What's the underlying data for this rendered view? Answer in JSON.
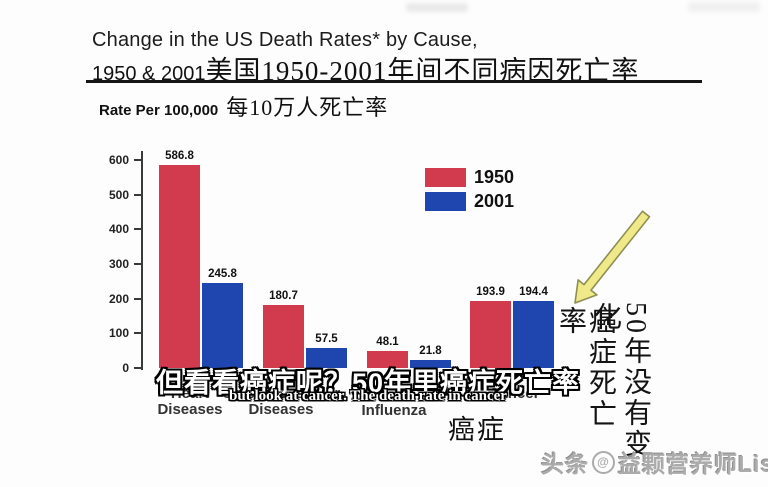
{
  "title": {
    "line1": "Change in the US Death Rates* by Cause,",
    "line2_en": "1950 & 2001",
    "line2_cn": "美国1950-2001年间不同病因死亡率"
  },
  "rate_note": {
    "en": "Rate Per 100,000",
    "cn": "每10万人死亡率"
  },
  "chart_data": {
    "type": "bar",
    "title": "Change in the US Death Rates* by Cause, 1950 & 2001",
    "categories": [
      {
        "lines": [
          "Heart",
          "Diseases"
        ],
        "cn": ""
      },
      {
        "lines": [
          "Cerebrovascular",
          "Diseases"
        ],
        "cn": ""
      },
      {
        "lines": [
          "Influenza"
        ],
        "cn": ""
      },
      {
        "lines": [
          "Cancer"
        ],
        "cn": "癌症"
      }
    ],
    "series": [
      {
        "name": "1950",
        "color": "#d23b4e",
        "values": [
          586.8,
          180.7,
          48.1,
          193.9
        ]
      },
      {
        "name": "2001",
        "color": "#1f45ae",
        "values": [
          245.8,
          57.5,
          21.8,
          194.4
        ]
      }
    ],
    "ylabel_en": "Rate Per 100,000",
    "ylabel_cn": "每10万人死亡率",
    "ylim": [
      0,
      600
    ],
    "yticks": [
      0,
      100,
      200,
      300,
      400,
      500,
      600
    ],
    "grid": false,
    "legend_position": "upper right"
  },
  "caption": {
    "cn": "但看看癌症呢？50年里癌症死亡率",
    "en": "but look at cancer. The death rate in cancer"
  },
  "side_text": {
    "col_left": "癌症死亡率",
    "col_right": "50年没有变化"
  },
  "arrow": {
    "color_fill": "#efe98a",
    "color_edge": "#8f8f52"
  },
  "watermark": {
    "prefix": "头条",
    "icon": "at-circle-icon",
    "name": "益颗营养师Lisa"
  }
}
